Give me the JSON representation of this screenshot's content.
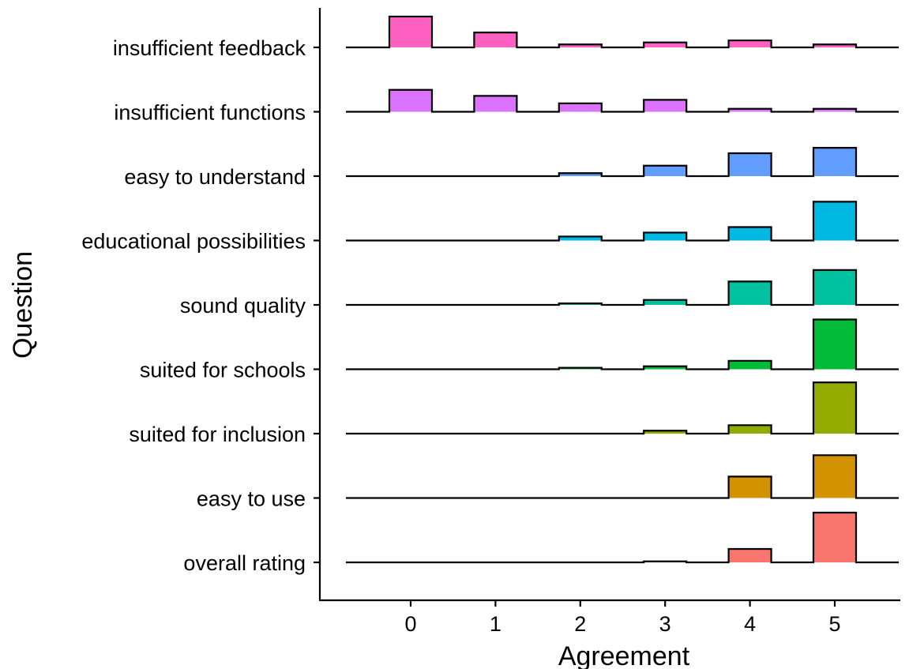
{
  "chart_data": {
    "type": "ridgeline-histogram",
    "title": "",
    "xlabel": "Agreement",
    "ylabel": "Question",
    "x_ticks": [
      0,
      1,
      2,
      3,
      4,
      5
    ],
    "grid": false,
    "legend": "none",
    "value_unit": "relative frequency (estimated)",
    "series": [
      {
        "name": "overall rating",
        "color": "#F8766D",
        "values": [
          0,
          0,
          0,
          0.02,
          0.27,
          1.0
        ]
      },
      {
        "name": "easy to use",
        "color": "#D39200",
        "values": [
          0,
          0,
          0,
          0,
          0.43,
          0.86
        ]
      },
      {
        "name": "suited for inclusion",
        "color": "#93AA00",
        "values": [
          0,
          0,
          0,
          0.06,
          0.17,
          1.03
        ]
      },
      {
        "name": "suited for schools",
        "color": "#00BA38",
        "values": [
          0,
          0,
          0.03,
          0.06,
          0.17,
          1.0
        ]
      },
      {
        "name": "sound quality",
        "color": "#00C19F",
        "values": [
          0,
          0,
          0.03,
          0.1,
          0.47,
          0.7
        ]
      },
      {
        "name": "educational possibilities",
        "color": "#00B9E3",
        "values": [
          0,
          0,
          0.08,
          0.16,
          0.27,
          0.78
        ]
      },
      {
        "name": "easy to understand",
        "color": "#619CFF",
        "values": [
          0,
          0,
          0.06,
          0.21,
          0.46,
          0.57
        ]
      },
      {
        "name": "insufficient functions",
        "color": "#DB72FB",
        "values": [
          0.44,
          0.32,
          0.17,
          0.24,
          0.06,
          0.06
        ]
      },
      {
        "name": "insufficient feedback",
        "color": "#FF61C3",
        "values": [
          0.62,
          0.3,
          0.06,
          0.1,
          0.14,
          0.06
        ]
      }
    ]
  }
}
